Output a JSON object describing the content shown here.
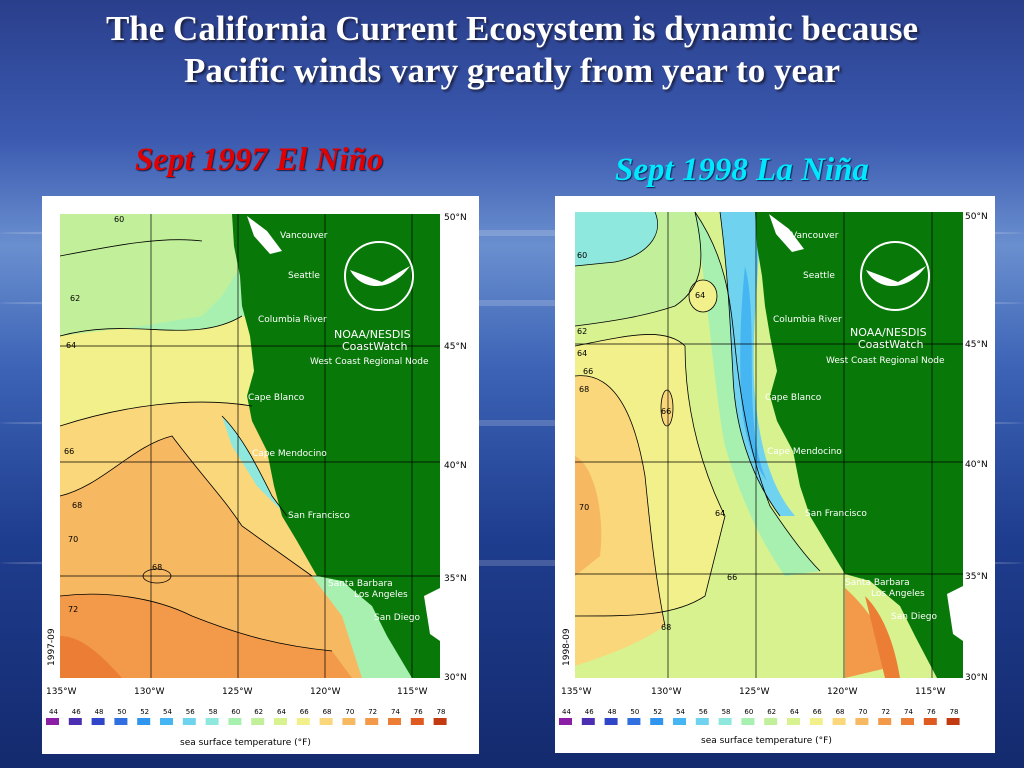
{
  "title": {
    "line1": "The California Current Ecosystem is dynamic because",
    "line2": "Pacific winds vary greatly from year to  year"
  },
  "panels": [
    {
      "caption": "Sept 1997 El Niño",
      "date_code": "1997-09",
      "colors": {
        "caption": "#e00000"
      }
    },
    {
      "caption": "Sept 1998 La Niña",
      "date_code": "1998-09",
      "colors": {
        "caption": "#00e8ff"
      }
    }
  ],
  "map": {
    "org": "NOAA/NESDIS",
    "product": "CoastWatch",
    "node": "West Coast Regional Node",
    "places": [
      "Vancouver",
      "Seattle",
      "Columbia River",
      "Cape Blanco",
      "Cape Mendocino",
      "San Francisco",
      "Santa Barbara",
      "Los Angeles",
      "San Diego"
    ],
    "lat_labels": [
      "50°N",
      "45°N",
      "40°N",
      "35°N",
      "30°N"
    ],
    "lon_labels": [
      "135°W",
      "130°W",
      "125°W",
      "120°W",
      "115°W"
    ],
    "legend_title": "sea surface temperature (°F)",
    "legend_values": [
      "44",
      "46",
      "48",
      "50",
      "52",
      "54",
      "56",
      "58",
      "60",
      "62",
      "64",
      "66",
      "68",
      "70",
      "72",
      "74",
      "76",
      "78"
    ],
    "legend_colors": [
      "#8a1fa6",
      "#4b2fb0",
      "#2f46c9",
      "#2f6fe0",
      "#2f95ef",
      "#45b6f2",
      "#6fd3f0",
      "#8fe8dd",
      "#a8f0b0",
      "#c2f09a",
      "#d8f290",
      "#f2f08a",
      "#f9d77a",
      "#f7b862",
      "#f29a4a",
      "#ec7d34",
      "#df5a20",
      "#c43a10"
    ],
    "land_color": "#087808"
  }
}
